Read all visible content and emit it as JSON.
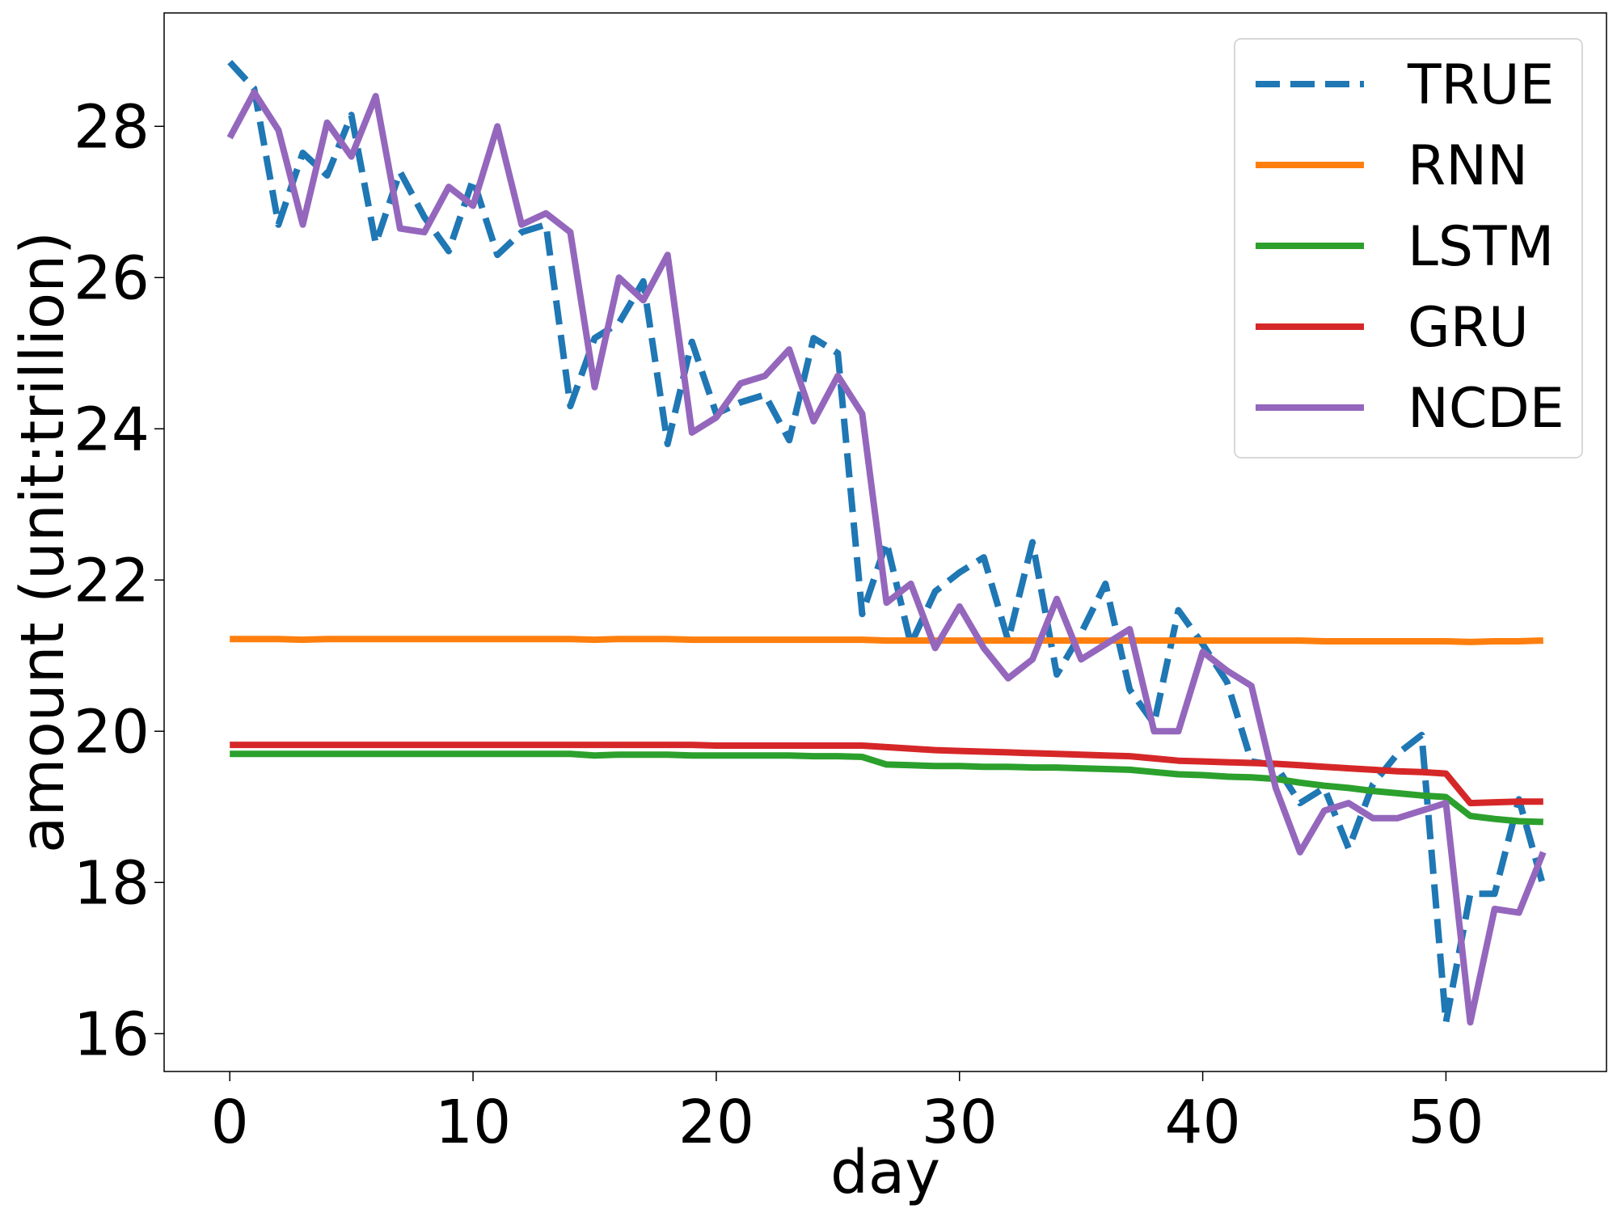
{
  "chart_data": {
    "type": "line",
    "title": "",
    "xlabel": "day",
    "ylabel": "amount (unit:trillion)",
    "xlim": [
      -2.7,
      56.6
    ],
    "ylim": [
      15.5,
      29.5
    ],
    "xticks": [
      0,
      10,
      20,
      30,
      40,
      50
    ],
    "yticks": [
      16,
      18,
      20,
      22,
      24,
      26,
      28
    ],
    "grid": false,
    "legend_position": "top-right",
    "x": [
      0,
      1,
      2,
      3,
      4,
      5,
      6,
      7,
      8,
      9,
      10,
      11,
      12,
      13,
      14,
      15,
      16,
      17,
      18,
      19,
      20,
      21,
      22,
      23,
      24,
      25,
      26,
      27,
      28,
      29,
      30,
      31,
      32,
      33,
      34,
      35,
      36,
      37,
      38,
      39,
      40,
      41,
      42,
      43,
      44,
      45,
      46,
      47,
      48,
      49,
      50,
      51,
      52,
      53,
      54
    ],
    "series": [
      {
        "name": "TRUE",
        "color": "#1f77b4",
        "dashed": true,
        "values": [
          28.85,
          28.5,
          26.7,
          27.65,
          27.35,
          28.15,
          26.45,
          27.4,
          26.8,
          26.35,
          27.3,
          26.3,
          26.6,
          26.7,
          24.3,
          25.2,
          25.4,
          25.95,
          23.8,
          25.15,
          24.2,
          24.35,
          24.45,
          23.85,
          25.2,
          25.0,
          21.55,
          22.5,
          21.15,
          21.85,
          22.1,
          22.3,
          21.2,
          22.5,
          20.75,
          21.3,
          21.95,
          20.55,
          20.1,
          21.6,
          21.15,
          20.65,
          19.6,
          19.55,
          19.05,
          19.25,
          18.45,
          19.3,
          19.7,
          19.95,
          16.15,
          17.85,
          17.85,
          19.1,
          17.95
        ]
      },
      {
        "name": "RNN",
        "color": "#ff7f0e",
        "dashed": false,
        "values": [
          21.22,
          21.22,
          21.22,
          21.21,
          21.22,
          21.22,
          21.22,
          21.22,
          21.22,
          21.22,
          21.22,
          21.22,
          21.22,
          21.22,
          21.22,
          21.21,
          21.22,
          21.22,
          21.22,
          21.21,
          21.21,
          21.21,
          21.21,
          21.21,
          21.21,
          21.21,
          21.21,
          21.2,
          21.2,
          21.2,
          21.2,
          21.2,
          21.2,
          21.2,
          21.2,
          21.2,
          21.2,
          21.2,
          21.2,
          21.2,
          21.2,
          21.2,
          21.2,
          21.2,
          21.2,
          21.19,
          21.19,
          21.19,
          21.19,
          21.19,
          21.19,
          21.18,
          21.19,
          21.19,
          21.2
        ]
      },
      {
        "name": "LSTM",
        "color": "#2ca02c",
        "dashed": false,
        "values": [
          19.7,
          19.7,
          19.7,
          19.7,
          19.7,
          19.7,
          19.7,
          19.7,
          19.7,
          19.7,
          19.7,
          19.7,
          19.7,
          19.7,
          19.7,
          19.68,
          19.69,
          19.69,
          19.69,
          19.68,
          19.68,
          19.68,
          19.68,
          19.68,
          19.67,
          19.67,
          19.66,
          19.56,
          19.55,
          19.54,
          19.54,
          19.53,
          19.53,
          19.52,
          19.52,
          19.51,
          19.5,
          19.49,
          19.46,
          19.43,
          19.42,
          19.4,
          19.39,
          19.37,
          19.32,
          19.28,
          19.25,
          19.21,
          19.18,
          19.15,
          19.13,
          18.88,
          18.84,
          18.81,
          18.8
        ]
      },
      {
        "name": "GRU",
        "color": "#d62728",
        "dashed": false,
        "values": [
          19.82,
          19.82,
          19.82,
          19.82,
          19.82,
          19.82,
          19.82,
          19.82,
          19.82,
          19.82,
          19.82,
          19.82,
          19.82,
          19.82,
          19.82,
          19.82,
          19.82,
          19.82,
          19.82,
          19.82,
          19.81,
          19.81,
          19.81,
          19.81,
          19.81,
          19.81,
          19.81,
          19.79,
          19.77,
          19.75,
          19.74,
          19.73,
          19.72,
          19.71,
          19.7,
          19.69,
          19.68,
          19.67,
          19.64,
          19.61,
          19.6,
          19.59,
          19.58,
          19.57,
          19.55,
          19.53,
          19.51,
          19.49,
          19.47,
          19.46,
          19.44,
          19.05,
          19.06,
          19.07,
          19.07
        ]
      },
      {
        "name": "NCDE",
        "color": "#9467bd",
        "dashed": false,
        "values": [
          27.85,
          28.45,
          27.95,
          26.7,
          28.05,
          27.6,
          28.4,
          26.65,
          26.6,
          27.2,
          26.95,
          28.0,
          26.7,
          26.85,
          26.6,
          24.55,
          26.0,
          25.7,
          26.3,
          23.95,
          24.15,
          24.6,
          24.7,
          25.05,
          24.1,
          24.7,
          24.2,
          21.7,
          21.95,
          21.1,
          21.65,
          21.1,
          20.7,
          20.95,
          21.75,
          20.95,
          21.15,
          21.35,
          20.0,
          20.0,
          21.05,
          20.8,
          20.6,
          19.25,
          18.4,
          18.95,
          19.05,
          18.85,
          18.85,
          18.95,
          19.05,
          16.15,
          17.65,
          17.6,
          18.4
        ]
      }
    ]
  }
}
